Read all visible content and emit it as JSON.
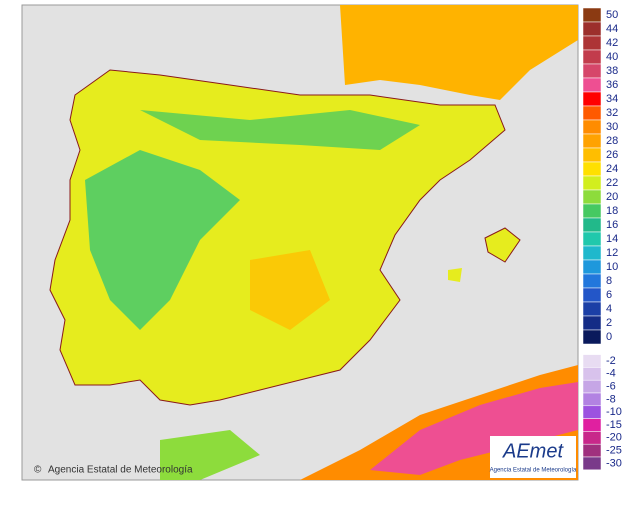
{
  "map": {
    "copyright": "Agencia Estatal de Meteorología",
    "logo": {
      "name": "AEmet",
      "subtitle": "Agencia Estatal de Meteorología"
    },
    "legend": {
      "upper": [
        {
          "label": 50,
          "color": "#8b3a12"
        },
        {
          "label": 44,
          "color": "#9c2f2c"
        },
        {
          "label": 42,
          "color": "#ad3436"
        },
        {
          "label": 40,
          "color": "#c23c4c"
        },
        {
          "label": 38,
          "color": "#d6466a"
        },
        {
          "label": 36,
          "color": "#ee4f92"
        },
        {
          "label": 34,
          "color": "#ff0000"
        },
        {
          "label": 32,
          "color": "#ff5a00"
        },
        {
          "label": 30,
          "color": "#ff8c00"
        },
        {
          "label": 28,
          "color": "#ffa200"
        },
        {
          "label": 26,
          "color": "#ffbe00"
        },
        {
          "label": 24,
          "color": "#ffe000"
        },
        {
          "label": 22,
          "color": "#d2ee1e"
        },
        {
          "label": 20,
          "color": "#8ddc3c"
        },
        {
          "label": 18,
          "color": "#46c962"
        },
        {
          "label": 16,
          "color": "#22b98a"
        },
        {
          "label": 14,
          "color": "#20c8ac"
        },
        {
          "label": 12,
          "color": "#1fb8cc"
        },
        {
          "label": 10,
          "color": "#1e98dc"
        },
        {
          "label": 8,
          "color": "#2277dc"
        },
        {
          "label": 6,
          "color": "#2356c8"
        },
        {
          "label": 4,
          "color": "#1b3fa6"
        },
        {
          "label": 2,
          "color": "#142c86"
        },
        {
          "label": 0,
          "color": "#0a1a5c"
        }
      ],
      "lower": [
        {
          "label": -2,
          "color": "#e8dcf2"
        },
        {
          "label": -4,
          "color": "#d8c2ec"
        },
        {
          "label": -6,
          "color": "#c6a6e6"
        },
        {
          "label": -8,
          "color": "#b282e2"
        },
        {
          "label": -10,
          "color": "#9c52e0"
        },
        {
          "label": -15,
          "color": "#e020a0"
        },
        {
          "label": -20,
          "color": "#c8288a"
        },
        {
          "label": -25,
          "color": "#a0307e"
        },
        {
          "label": -30,
          "color": "#7a3a8a"
        }
      ]
    }
  }
}
